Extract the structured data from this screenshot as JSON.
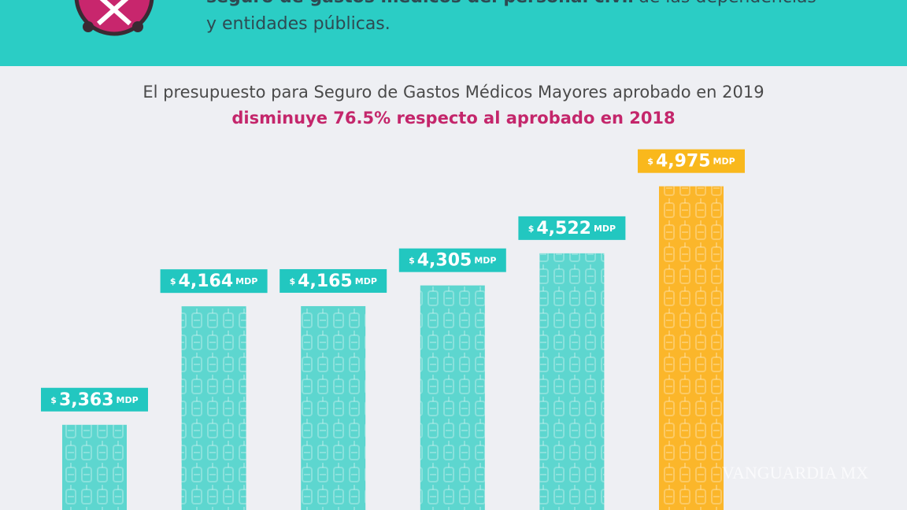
{
  "header": {
    "line1_bold": "seguro de gastos médicos del personal civil",
    "line1_rest": "de las dependencias",
    "line2": "y entidades públicas."
  },
  "chart_data": {
    "type": "bar",
    "subtitle": "El presupuesto para Seguro de Gastos Médicos Mayores aprobado en 2019",
    "highlight": "disminuye 76.5% respecto al aprobado en 2018",
    "categories": [
      null,
      null,
      null,
      null,
      null,
      null
    ],
    "values": [
      3363,
      4164,
      4165,
      4305,
      4522,
      4975
    ],
    "value_labels": [
      "3,363",
      "4,164",
      "4,165",
      "4,305",
      "4,522",
      "4,975"
    ],
    "currency": "$",
    "unit": "MDP",
    "colors": [
      "#5dd6cf",
      "#5dd6cf",
      "#5dd6cf",
      "#5dd6cf",
      "#5dd6cf",
      "#fbb62a"
    ],
    "label_colors": [
      "#22c7c0",
      "#22c7c0",
      "#22c7c0",
      "#22c7c0",
      "#22c7c0",
      "#f9b81c"
    ]
  },
  "watermark": "VANGUARDIA MX"
}
